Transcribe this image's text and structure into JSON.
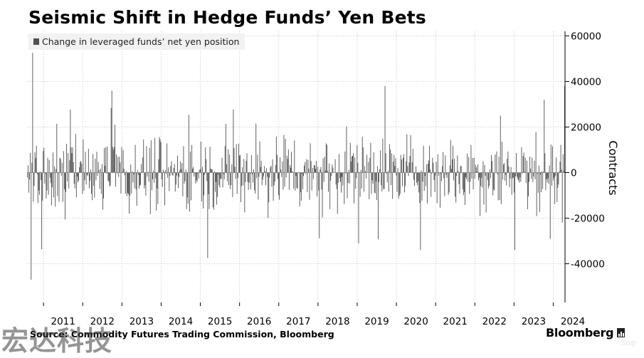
{
  "title": "Seismic Shift in Hedge Funds’ Yen Bets",
  "legend_label": "Change in leveraged funds’ net yen position",
  "source": "Source: Commodity Futures Trading Commission, Bloomberg",
  "brand": "Bloomberg",
  "watermark": "宏达科技",
  "snip": "Snip",
  "chart_data": {
    "type": "bar",
    "title": "Seismic Shift in Hedge Funds’ Yen Bets",
    "series_label": "Change in leveraged funds’ net yen position",
    "ylabel": "Contracts",
    "xlabel": "",
    "ylim": [
      -57000,
      62000
    ],
    "y_ticks": [
      60000,
      40000,
      20000,
      0,
      -20000,
      -40000
    ],
    "y_tick_labels": [
      "60000",
      "40000",
      "20000",
      "0",
      "-20000",
      "-40000"
    ],
    "x_ticks": [
      "2011",
      "2012",
      "2013",
      "2014",
      "2015",
      "2016",
      "2017",
      "2018",
      "2019",
      "2020",
      "2021",
      "2022",
      "2023",
      "2024"
    ],
    "x_range": [
      2010.58,
      2024.3
    ],
    "grid": true,
    "legend_position": "top-left",
    "bar_color": "#505050",
    "grid_color": "#d2d2d2",
    "peaks": [
      {
        "x": 2010.72,
        "y": 52500
      },
      {
        "x": 2010.68,
        "y": -47000
      },
      {
        "x": 2012.73,
        "y": 36000
      },
      {
        "x": 2015.18,
        "y": -37500
      },
      {
        "x": 2019.7,
        "y": 38000
      },
      {
        "x": 2024.27,
        "y": 38000
      },
      {
        "x": 2024.22,
        "y": -22000
      }
    ]
  }
}
